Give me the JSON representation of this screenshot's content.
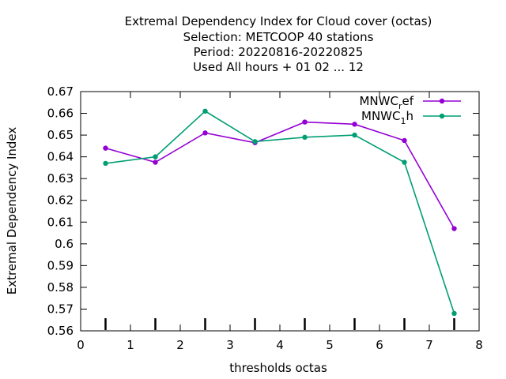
{
  "chart_data": {
    "type": "line",
    "title_lines": [
      "Extremal Dependency Index  for Cloud cover (octas)",
      "Selection: METCOOP     40 stations",
      "Period: 20220816-20220825",
      "Used  All hours + 01 02 ... 12"
    ],
    "xlabel": "thresholds octas",
    "ylabel": "Extremal Dependency Index",
    "xlim": [
      0,
      8
    ],
    "ylim": [
      0.56,
      0.67
    ],
    "xticks": [
      0,
      1,
      2,
      3,
      4,
      5,
      6,
      7,
      8
    ],
    "yticks": [
      0.56,
      0.57,
      0.58,
      0.59,
      0.6,
      0.61,
      0.62,
      0.63,
      0.64,
      0.65,
      0.66,
      0.67
    ],
    "xtick_labels": [
      "0",
      "1",
      "2",
      "3",
      "4",
      "5",
      "6",
      "7",
      "8"
    ],
    "ytick_labels": [
      "0.56",
      "0.57",
      "0.58",
      "0.59",
      "0.6",
      "0.61",
      "0.62",
      "0.63",
      "0.64",
      "0.65",
      "0.66",
      "0.67"
    ],
    "legend_position": "top-right",
    "grid": false,
    "x": [
      0.5,
      1.5,
      2.5,
      3.5,
      4.5,
      5.5,
      6.5,
      7.5
    ],
    "series": [
      {
        "name_base": "MNWC",
        "name_sub": "r",
        "name_rest": "ef",
        "color": "#9400d3",
        "values": [
          0.644,
          0.6375,
          0.651,
          0.6465,
          0.656,
          0.655,
          0.6475,
          0.607
        ]
      },
      {
        "name_base": "MNWC",
        "name_sub": "1",
        "name_rest": "h",
        "color": "#009e73",
        "values": [
          0.637,
          0.64,
          0.661,
          0.647,
          0.649,
          0.65,
          0.6375,
          0.568
        ]
      }
    ]
  }
}
